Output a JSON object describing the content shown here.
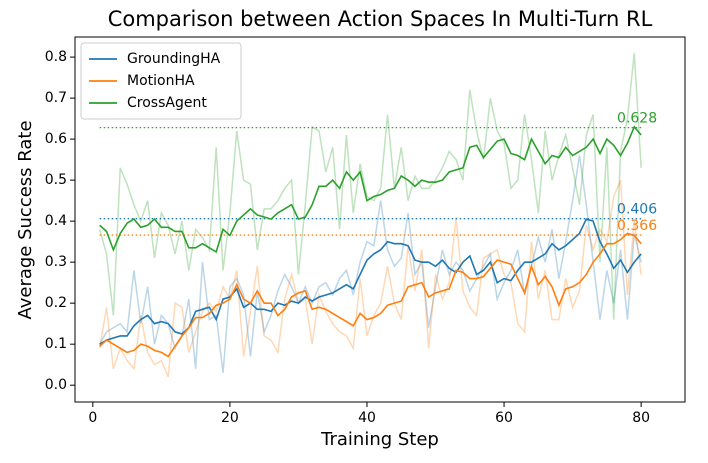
{
  "chart_data": {
    "type": "line",
    "title": "Comparison between Action Spaces In Multi-Turn RL",
    "x_label": "Training Step",
    "y_label": "Average Success Rate",
    "xlim": [
      -2.6,
      86.4
    ],
    "xticks": [
      0,
      20,
      40,
      60,
      80
    ],
    "ylim": [
      -0.041,
      0.849
    ],
    "yticks": [
      {
        "value": 0,
        "label": "0.0"
      },
      0.1,
      0.2,
      0.3,
      0.4,
      0.5,
      0.6,
      0.7,
      0.8
    ],
    "legend": "upper left",
    "x": [
      1,
      2,
      3,
      4,
      5,
      6,
      7,
      8,
      9,
      10,
      11,
      12,
      13,
      14,
      15,
      16,
      17,
      18,
      19,
      20,
      21,
      22,
      23,
      24,
      25,
      26,
      27,
      28,
      29,
      30,
      31,
      32,
      33,
      34,
      35,
      36,
      37,
      38,
      39,
      40,
      41,
      42,
      43,
      44,
      45,
      46,
      47,
      48,
      49,
      50,
      51,
      52,
      53,
      54,
      55,
      56,
      57,
      58,
      59,
      60,
      61,
      62,
      63,
      64,
      65,
      66,
      67,
      68,
      69,
      70,
      71,
      72,
      73,
      74,
      75,
      76,
      77,
      78,
      79,
      80
    ],
    "series": [
      {
        "name": "GroundingHA",
        "color": "#1f77b4",
        "final_value": 0.406,
        "values": [
          0.1,
          0.11,
          0.115,
          0.12,
          0.12,
          0.145,
          0.16,
          0.17,
          0.15,
          0.155,
          0.15,
          0.13,
          0.125,
          0.14,
          0.18,
          0.185,
          0.19,
          0.16,
          0.21,
          0.215,
          0.235,
          0.19,
          0.2,
          0.185,
          0.185,
          0.18,
          0.2,
          0.195,
          0.205,
          0.2,
          0.215,
          0.205,
          0.215,
          0.22,
          0.225,
          0.235,
          0.245,
          0.235,
          0.27,
          0.305,
          0.32,
          0.33,
          0.35,
          0.345,
          0.345,
          0.34,
          0.305,
          0.3,
          0.3,
          0.29,
          0.305,
          0.285,
          0.275,
          0.3,
          0.315,
          0.27,
          0.28,
          0.3,
          0.25,
          0.26,
          0.255,
          0.28,
          0.3,
          0.3,
          0.31,
          0.32,
          0.345,
          0.33,
          0.34,
          0.355,
          0.37,
          0.405,
          0.4,
          0.35,
          0.32,
          0.285,
          0.305,
          0.275,
          0.3,
          0.32
        ],
        "raw_values": [
          0.1,
          0.13,
          0.14,
          0.15,
          0.13,
          0.28,
          0.15,
          0.24,
          0.1,
          0.17,
          0.15,
          0.09,
          0.12,
          0.21,
          0.04,
          0.3,
          0.16,
          0.17,
          0.03,
          0.24,
          0.26,
          0.22,
          0.07,
          0.23,
          0.13,
          0.17,
          0.23,
          0.27,
          0.24,
          0.2,
          0.24,
          0.2,
          0.24,
          0.25,
          0.22,
          0.26,
          0.28,
          0.22,
          0.3,
          0.35,
          0.34,
          0.45,
          0.33,
          0.29,
          0.31,
          0.42,
          0.27,
          0.3,
          0.14,
          0.24,
          0.33,
          0.27,
          0.3,
          0.28,
          0.23,
          0.26,
          0.29,
          0.32,
          0.21,
          0.25,
          0.28,
          0.33,
          0.22,
          0.29,
          0.36,
          0.3,
          0.38,
          0.26,
          0.35,
          0.45,
          0.56,
          0.44,
          0.3,
          0.16,
          0.28,
          0.2,
          0.33,
          0.16,
          0.37,
          0.3
        ]
      },
      {
        "name": "MotionHA",
        "color": "#ff7f0e",
        "final_value": 0.366,
        "values": [
          0.095,
          0.11,
          0.1,
          0.09,
          0.08,
          0.085,
          0.1,
          0.095,
          0.085,
          0.08,
          0.07,
          0.095,
          0.12,
          0.14,
          0.165,
          0.165,
          0.175,
          0.195,
          0.2,
          0.21,
          0.245,
          0.21,
          0.2,
          0.23,
          0.2,
          0.2,
          0.17,
          0.185,
          0.215,
          0.225,
          0.23,
          0.185,
          0.19,
          0.185,
          0.175,
          0.165,
          0.155,
          0.145,
          0.175,
          0.16,
          0.165,
          0.175,
          0.195,
          0.2,
          0.205,
          0.24,
          0.245,
          0.25,
          0.215,
          0.225,
          0.23,
          0.235,
          0.28,
          0.275,
          0.26,
          0.26,
          0.265,
          0.285,
          0.305,
          0.3,
          0.295,
          0.26,
          0.225,
          0.29,
          0.245,
          0.265,
          0.24,
          0.195,
          0.235,
          0.24,
          0.25,
          0.27,
          0.3,
          0.32,
          0.345,
          0.345,
          0.355,
          0.37,
          0.365,
          0.345
        ],
        "raw_values": [
          0.09,
          0.19,
          0.04,
          0.09,
          0.06,
          0.04,
          0.17,
          0.08,
          0.05,
          0.06,
          0.02,
          0.2,
          0.19,
          0.08,
          0.13,
          0.18,
          0.2,
          0.18,
          0.24,
          0.21,
          0.28,
          0.07,
          0.18,
          0.29,
          0.12,
          0.11,
          0.08,
          0.21,
          0.27,
          0.2,
          0.21,
          0.1,
          0.22,
          0.18,
          0.15,
          0.13,
          0.12,
          0.09,
          0.26,
          0.12,
          0.17,
          0.2,
          0.29,
          0.2,
          0.16,
          0.34,
          0.23,
          0.33,
          0.09,
          0.27,
          0.21,
          0.25,
          0.41,
          0.23,
          0.19,
          0.17,
          0.31,
          0.32,
          0.33,
          0.27,
          0.25,
          0.15,
          0.13,
          0.35,
          0.21,
          0.28,
          0.16,
          0.16,
          0.26,
          0.19,
          0.23,
          0.39,
          0.33,
          0.38,
          0.35,
          0.46,
          0.5,
          0.22,
          0.4,
          0.27
        ]
      },
      {
        "name": "CrossAgent",
        "color": "#2ca02c",
        "final_value": 0.628,
        "values": [
          0.39,
          0.375,
          0.33,
          0.37,
          0.395,
          0.405,
          0.385,
          0.39,
          0.405,
          0.385,
          0.385,
          0.375,
          0.375,
          0.335,
          0.335,
          0.345,
          0.335,
          0.325,
          0.38,
          0.365,
          0.4,
          0.415,
          0.43,
          0.415,
          0.41,
          0.405,
          0.42,
          0.43,
          0.44,
          0.405,
          0.41,
          0.44,
          0.485,
          0.485,
          0.5,
          0.48,
          0.52,
          0.5,
          0.52,
          0.45,
          0.46,
          0.465,
          0.475,
          0.48,
          0.51,
          0.5,
          0.485,
          0.5,
          0.495,
          0.495,
          0.5,
          0.52,
          0.525,
          0.53,
          0.58,
          0.585,
          0.555,
          0.575,
          0.595,
          0.6,
          0.565,
          0.56,
          0.55,
          0.6,
          0.57,
          0.54,
          0.56,
          0.555,
          0.58,
          0.56,
          0.57,
          0.58,
          0.6,
          0.565,
          0.6,
          0.585,
          0.56,
          0.59,
          0.63,
          0.61
        ],
        "raw_values": [
          0.38,
          0.32,
          0.17,
          0.53,
          0.49,
          0.44,
          0.4,
          0.45,
          0.31,
          0.42,
          0.39,
          0.32,
          0.4,
          0.28,
          0.38,
          0.36,
          0.33,
          0.58,
          0.28,
          0.42,
          0.62,
          0.5,
          0.49,
          0.33,
          0.43,
          0.43,
          0.45,
          0.48,
          0.5,
          0.27,
          0.44,
          0.63,
          0.62,
          0.52,
          0.58,
          0.38,
          0.61,
          0.42,
          0.54,
          0.46,
          0.45,
          0.48,
          0.66,
          0.48,
          0.58,
          0.45,
          0.51,
          0.48,
          0.48,
          0.5,
          0.53,
          0.57,
          0.55,
          0.5,
          0.72,
          0.62,
          0.55,
          0.7,
          0.62,
          0.59,
          0.48,
          0.5,
          0.66,
          0.55,
          0.42,
          0.62,
          0.5,
          0.56,
          0.61,
          0.53,
          0.44,
          0.61,
          0.66,
          0.3,
          0.58,
          0.16,
          0.57,
          0.65,
          0.81,
          0.53
        ]
      }
    ]
  }
}
